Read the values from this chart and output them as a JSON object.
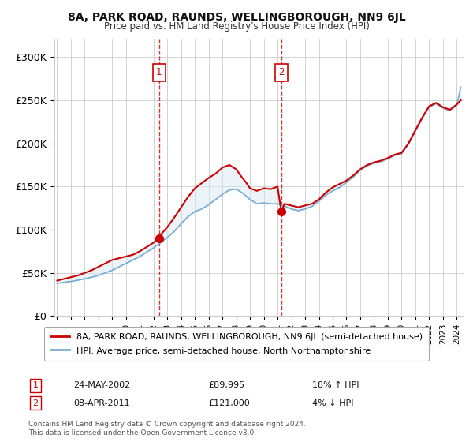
{
  "title": "8A, PARK ROAD, RAUNDS, WELLINGBOROUGH, NN9 6JL",
  "subtitle": "Price paid vs. HM Land Registry's House Price Index (HPI)",
  "legend_line1": "8A, PARK ROAD, RAUNDS, WELLINGBOROUGH, NN9 6JL (semi-detached house)",
  "legend_line2": "HPI: Average price, semi-detached house, North Northamptonshire",
  "footer": "Contains HM Land Registry data © Crown copyright and database right 2024.\nThis data is licensed under the Open Government Licence v3.0.",
  "transactions": [
    {
      "label": "1",
      "date_str": "24-MAY-2002",
      "price_str": "£89,995",
      "year": 2002.39,
      "hpi_pct": "18% ↑ HPI"
    },
    {
      "label": "2",
      "date_str": "08-APR-2011",
      "price_str": "£121,000",
      "year": 2011.27,
      "hpi_pct": "4% ↓ HPI"
    }
  ],
  "ylim": [
    0,
    320000
  ],
  "yticks": [
    0,
    50000,
    100000,
    150000,
    200000,
    250000,
    300000
  ],
  "ytick_labels": [
    "£0",
    "£50K",
    "£100K",
    "£150K",
    "£200K",
    "£250K",
    "£300K"
  ],
  "xlim_start": 1994.8,
  "xlim_end": 2024.5,
  "red_color": "#cc0000",
  "blue_color": "#7aadd4",
  "shade_color": "#d6e8f5",
  "background_color": "#ffffff",
  "grid_color": "#cccccc",
  "marker_box_color": "#cc0000",
  "years_hpi": [
    1995.0,
    1995.5,
    1996.0,
    1996.5,
    1997.0,
    1997.5,
    1998.0,
    1998.5,
    1999.0,
    1999.5,
    2000.0,
    2000.5,
    2001.0,
    2001.5,
    2002.0,
    2002.5,
    2003.0,
    2003.5,
    2004.0,
    2004.5,
    2005.0,
    2005.5,
    2006.0,
    2006.5,
    2007.0,
    2007.5,
    2008.0,
    2008.5,
    2009.0,
    2009.5,
    2010.0,
    2010.5,
    2011.0,
    2011.5,
    2012.0,
    2012.5,
    2013.0,
    2013.5,
    2014.0,
    2014.5,
    2015.0,
    2015.5,
    2016.0,
    2016.5,
    2017.0,
    2017.5,
    2018.0,
    2018.5,
    2019.0,
    2019.5,
    2020.0,
    2020.5,
    2021.0,
    2021.5,
    2022.0,
    2022.5,
    2023.0,
    2023.5,
    2024.0,
    2024.3
  ],
  "hpi_values": [
    38000,
    39000,
    40000,
    41500,
    43000,
    45000,
    47000,
    50000,
    53000,
    57000,
    61000,
    65000,
    69000,
    74000,
    79000,
    85000,
    91000,
    98000,
    107000,
    115000,
    121000,
    124000,
    129000,
    135000,
    141000,
    146000,
    147000,
    142000,
    135000,
    130000,
    131000,
    130000,
    130000,
    127000,
    124000,
    122000,
    124000,
    127000,
    133000,
    140000,
    145000,
    149000,
    155000,
    161000,
    169000,
    174000,
    177000,
    179000,
    182000,
    186000,
    188000,
    199000,
    214000,
    229000,
    242000,
    246000,
    241000,
    238000,
    244000,
    265000
  ],
  "years_red": [
    1995.0,
    1995.5,
    1996.0,
    1996.5,
    1997.0,
    1997.5,
    1998.0,
    1998.5,
    1999.0,
    1999.5,
    2000.0,
    2000.5,
    2001.0,
    2001.5,
    2002.0,
    2002.39,
    2002.5,
    2003.0,
    2003.5,
    2004.0,
    2004.5,
    2005.0,
    2005.5,
    2006.0,
    2006.5,
    2007.0,
    2007.5,
    2008.0,
    2008.3,
    2008.7,
    2009.0,
    2009.5,
    2010.0,
    2010.5,
    2011.0,
    2011.27,
    2011.5,
    2012.0,
    2012.5,
    2013.0,
    2013.5,
    2014.0,
    2014.5,
    2015.0,
    2015.5,
    2016.0,
    2016.5,
    2017.0,
    2017.5,
    2018.0,
    2018.5,
    2019.0,
    2019.5,
    2020.0,
    2020.5,
    2021.0,
    2021.5,
    2022.0,
    2022.5,
    2023.0,
    2023.5,
    2024.0,
    2024.3
  ],
  "red_values": [
    41000,
    43000,
    45000,
    47000,
    50000,
    53000,
    57000,
    61000,
    65000,
    67000,
    69000,
    71000,
    75000,
    80000,
    85000,
    89995,
    94000,
    103000,
    114000,
    126000,
    138000,
    148000,
    154000,
    160000,
    165000,
    172000,
    175000,
    170000,
    163000,
    155000,
    148000,
    145000,
    148000,
    147000,
    150000,
    121000,
    130000,
    128000,
    126000,
    128000,
    130000,
    135000,
    143000,
    149000,
    153000,
    157000,
    163000,
    170000,
    175000,
    178000,
    180000,
    183000,
    187000,
    189000,
    200000,
    215000,
    230000,
    243000,
    247000,
    242000,
    239000,
    245000,
    250000
  ]
}
